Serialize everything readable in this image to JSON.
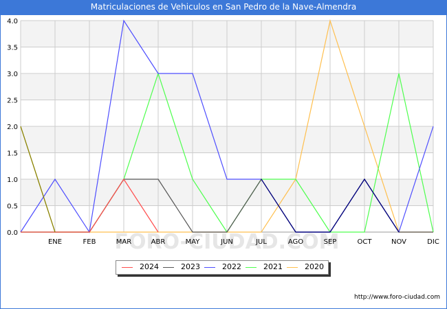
{
  "title": "Matriculaciones de Vehiculos en San Pedro de la Nave-Almendra",
  "watermark": "FORO-CIUDAD.COM",
  "source": "http://www.foro-ciudad.com",
  "colors": {
    "title_bg": "#3c78d8",
    "grid": "#cccccc",
    "band": "#f3f3f3"
  },
  "chart_data": {
    "type": "line",
    "title": "Matriculaciones de Vehiculos en San Pedro de la Nave-Almendra",
    "categories": [
      "",
      "ENE",
      "FEB",
      "MAR",
      "ABR",
      "MAY",
      "JUN",
      "JUL",
      "AGO",
      "SEP",
      "OCT",
      "NOV",
      "DIC"
    ],
    "ylim": [
      0,
      4
    ],
    "yticks": [
      "0.0",
      "0.5",
      "1.0",
      "1.5",
      "2.0",
      "2.5",
      "3.0",
      "3.5",
      "4.0"
    ],
    "legend_position": "bottom",
    "series": [
      {
        "name": "2024",
        "color": "#ff4d4d",
        "values": [
          0,
          0,
          0,
          1,
          0,
          null,
          null,
          null,
          null,
          null,
          null,
          null,
          null
        ]
      },
      {
        "name": "2023",
        "color": "#555555",
        "values": [
          0,
          0,
          0,
          1,
          1,
          0,
          0,
          1,
          0,
          0,
          1,
          0,
          0
        ]
      },
      {
        "name": "2022",
        "color": "#4d4dff",
        "values": [
          0,
          1,
          0,
          4,
          3,
          3,
          1,
          1,
          0,
          0,
          1,
          0,
          2
        ]
      },
      {
        "name": "2021",
        "color": "#4dff4d",
        "values": [
          0,
          0,
          0,
          1,
          3,
          1,
          0,
          1,
          1,
          0,
          0,
          3,
          0
        ]
      },
      {
        "name": "2020",
        "color": "#ffbf4d",
        "values": [
          2,
          0,
          0,
          0,
          0,
          0,
          0,
          0,
          1,
          4,
          2,
          0,
          0
        ]
      }
    ],
    "overlay": {
      "name": "",
      "color": "#00007f",
      "values": [
        null,
        null,
        null,
        null,
        null,
        null,
        null,
        1,
        0,
        0,
        1,
        0,
        null
      ]
    },
    "overlay2": {
      "name": "",
      "color": "#7f7f00",
      "values": [
        2,
        0,
        null,
        null,
        null,
        null,
        null,
        null,
        null,
        null,
        null,
        null,
        null
      ]
    }
  }
}
